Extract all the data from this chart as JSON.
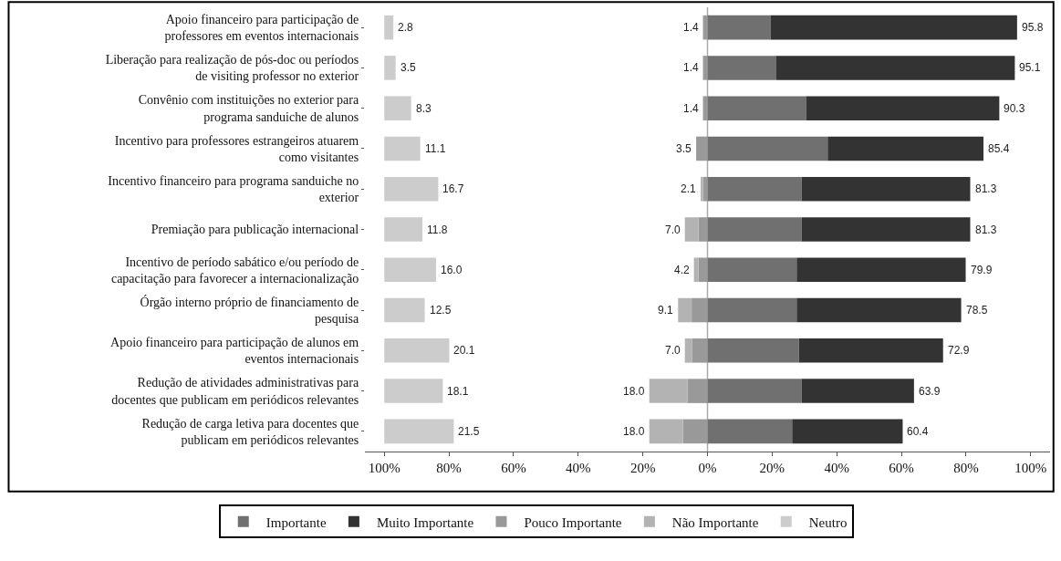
{
  "chart_data": {
    "type": "bar",
    "orientation": "horizontal",
    "categories": [
      "Apoio financeiro para participação de professores em eventos internacionais",
      "Liberação para realização de pós-doc ou períodos de visiting professor no exterior",
      "Convênio com instituições no exterior para programa sanduiche de alunos",
      "Incentivo para professores estrangeiros atuarem como visitantes",
      "Incentivo financeiro para programa sanduiche no exterior",
      "Premiação para publicação internacional",
      "Incentivo de período sabático e/ou período de capacitação para favorecer a internacionalização",
      "Órgão interno próprio de financiamento de pesquisa",
      "Apoio financeiro para participação de alunos em eventos internacionais",
      "Redução de atividades administrativas para docentes que publicam em periódicos relevantes",
      "Redução de carga letiva para docentes que publicam em periódicos relevantes"
    ],
    "series": [
      {
        "name": "Importante",
        "color": "#707070",
        "base": [
          0,
          0,
          0,
          0,
          0,
          0,
          0,
          0,
          0,
          0,
          0
        ],
        "values": [
          19.5,
          21.3,
          30.5,
          37.2,
          29.1,
          29.1,
          27.6,
          27.6,
          28.3,
          29.1,
          26.2
        ]
      },
      {
        "name": "Muito Importante",
        "color": "#333333",
        "base": [
          19.5,
          21.3,
          30.5,
          37.2,
          29.1,
          29.1,
          27.6,
          27.6,
          28.3,
          29.1,
          26.2
        ],
        "values": [
          76.3,
          73.8,
          59.8,
          48.2,
          52.2,
          52.2,
          52.3,
          50.9,
          44.6,
          34.8,
          34.2
        ]
      },
      {
        "name": "Pouco Importante",
        "color": "#999999",
        "base": [
          0,
          0,
          0,
          0,
          0,
          0,
          0,
          0,
          0,
          0,
          0
        ],
        "values": [
          -1.4,
          -1.4,
          -1.4,
          -3.5,
          -1.4,
          -2.8,
          -2.8,
          -4.9,
          -4.7,
          -6.2,
          -7.6
        ]
      },
      {
        "name": "Não Importante",
        "color": "#b3b3b3",
        "base": [
          null,
          null,
          null,
          null,
          -1.4,
          -2.8,
          -2.8,
          -4.9,
          -4.7,
          -6.2,
          -7.6
        ],
        "values": [
          null,
          null,
          null,
          null,
          -0.7,
          -4.2,
          -1.4,
          -4.2,
          -2.3,
          -11.8,
          -10.4
        ]
      },
      {
        "name": "Neutro",
        "color": "#cccccc",
        "base": [
          -100,
          -100,
          -100,
          -100,
          -100,
          -100,
          -100,
          -100,
          -100,
          -100,
          -100
        ],
        "values": [
          2.8,
          3.5,
          8.3,
          11.1,
          16.7,
          11.8,
          16.0,
          12.5,
          20.1,
          18.1,
          21.5
        ],
        "value_labels": [
          "2.8",
          "3.5",
          "8.3",
          "11.1",
          "16.7",
          "11.8",
          "16.0",
          "12.5",
          "20.1",
          "18.1",
          "21.5"
        ]
      }
    ],
    "annotations": [
      {
        "text": "95.8",
        "x": 95.8,
        "y": "Apoio financeiro para participação de professores em eventos internacionais"
      },
      {
        "text": "95.1",
        "x": 95.1,
        "y": "Liberação para realização de pós-doc ou períodos de visiting professor no exterior"
      },
      {
        "text": "90.3",
        "x": 90.3,
        "y": "Convênio com instituições no exterior para programa sanduiche de alunos"
      },
      {
        "text": "85.4",
        "x": 85.4,
        "y": "Incentivo para professores estrangeiros atuarem como visitantes"
      },
      {
        "text": "81.3",
        "x": 81.3,
        "y": "Incentivo financeiro para programa sanduiche no exterior"
      },
      {
        "text": "81.3",
        "x": 81.3,
        "y": "Premiação para publicação internacional"
      },
      {
        "text": "79.9",
        "x": 79.9,
        "y": "Incentivo de período sabático e/ou período de capacitação para favorecer a internacionalização"
      },
      {
        "text": "78.5",
        "x": 78.5,
        "y": "Órgão interno próprio de financiamento de pesquisa"
      },
      {
        "text": "72.9",
        "x": 72.9,
        "y": "Apoio financeiro para participação de alunos em eventos internacionais"
      },
      {
        "text": "63.9",
        "x": 63.9,
        "y": "Redução de atividades administrativas para docentes que publicam em periódicos relevantes"
      },
      {
        "text": "60.4",
        "x": 60.4,
        "y": "Redução de carga letiva para docentes que publicam em periódicos relevantes"
      },
      {
        "text": "1.4",
        "x": -1.4,
        "y": "Apoio financeiro para participação de professores em eventos internacionais"
      },
      {
        "text": "1.4",
        "x": -1.4,
        "y": "Liberação para realização de pós-doc ou períodos de visiting professor no exterior"
      },
      {
        "text": "1.4",
        "x": -1.4,
        "y": "Convênio com instituições no exterior para programa sanduiche de alunos"
      },
      {
        "text": "3.5",
        "x": -3.5,
        "y": "Incentivo para professores estrangeiros atuarem como visitantes"
      },
      {
        "text": "2.1",
        "x": -2.1,
        "y": "Incentivo financeiro para programa sanduiche no exterior"
      },
      {
        "text": "7.0",
        "x": -7.0,
        "y": "Premiação para publicação internacional"
      },
      {
        "text": "4.2",
        "x": -4.2,
        "y": "Incentivo de período sabático e/ou período de capacitação para favorecer a internacionalização"
      },
      {
        "text": "9.1",
        "x": -9.1,
        "y": "Órgão interno próprio de financiamento de pesquisa"
      },
      {
        "text": "7.0",
        "x": -7.0,
        "y": "Apoio financeiro para participação de alunos em eventos internacionais"
      },
      {
        "text": "18.0",
        "x": -18.0,
        "y": "Redução de atividades administrativas para docentes que publicam em periódicos relevantes"
      },
      {
        "text": "18.0",
        "x": -18.0,
        "y": "Redução de carga letiva para docentes que publicam em periódicos relevantes"
      }
    ],
    "ref_lines": [
      {
        "axis": "x",
        "value": 0,
        "color": "#aaaaaa"
      }
    ],
    "xlim": [
      -106,
      106
    ],
    "xticks": [
      {
        "value": -100,
        "label": "100%"
      },
      {
        "value": -80,
        "label": "80%"
      },
      {
        "value": -60,
        "label": "60%"
      },
      {
        "value": -40,
        "label": "40%"
      },
      {
        "value": -20,
        "label": "20%"
      },
      {
        "value": 0,
        "label": "0%"
      },
      {
        "value": 20,
        "label": "20%"
      },
      {
        "value": 40,
        "label": "40%"
      },
      {
        "value": 60,
        "label": "60%"
      },
      {
        "value": 80,
        "label": "80%"
      },
      {
        "value": 100,
        "label": "100%"
      }
    ],
    "grid": false,
    "legend": "bottom"
  }
}
